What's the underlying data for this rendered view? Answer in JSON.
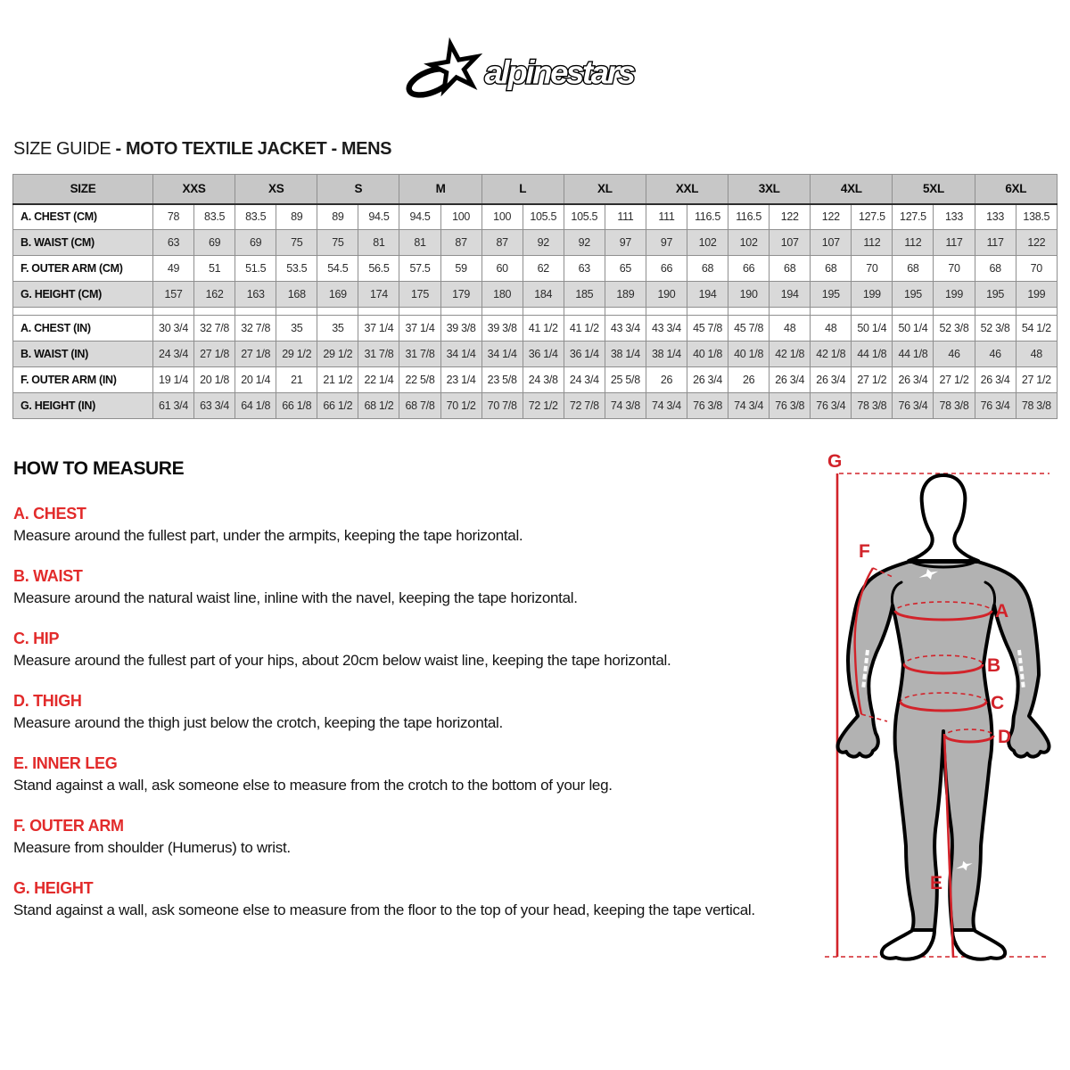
{
  "brand": {
    "logo_text": "alpinestars"
  },
  "title": {
    "regular": "SIZE GUIDE",
    "bold": "- MOTO TEXTILE JACKET - MENS"
  },
  "size_table": {
    "corner_label": "SIZE",
    "sizes": [
      "XXS",
      "XS",
      "S",
      "M",
      "L",
      "XL",
      "XXL",
      "3XL",
      "4XL",
      "5XL",
      "6XL"
    ],
    "groups": [
      {
        "unit": "CM",
        "rows": [
          {
            "label": "A. CHEST (CM)",
            "values": [
              "78",
              "83.5",
              "83.5",
              "89",
              "89",
              "94.5",
              "94.5",
              "100",
              "100",
              "105.5",
              "105.5",
              "111",
              "111",
              "116.5",
              "116.5",
              "122",
              "122",
              "127.5",
              "127.5",
              "133",
              "133",
              "138.5"
            ]
          },
          {
            "label": "B. WAIST (CM)",
            "values": [
              "63",
              "69",
              "69",
              "75",
              "75",
              "81",
              "81",
              "87",
              "87",
              "92",
              "92",
              "97",
              "97",
              "102",
              "102",
              "107",
              "107",
              "112",
              "112",
              "117",
              "117",
              "122"
            ]
          },
          {
            "label": "F. OUTER ARM (CM)",
            "values": [
              "49",
              "51",
              "51.5",
              "53.5",
              "54.5",
              "56.5",
              "57.5",
              "59",
              "60",
              "62",
              "63",
              "65",
              "66",
              "68",
              "66",
              "68",
              "68",
              "70",
              "68",
              "70",
              "68",
              "70"
            ]
          },
          {
            "label": "G. HEIGHT (CM)",
            "values": [
              "157",
              "162",
              "163",
              "168",
              "169",
              "174",
              "175",
              "179",
              "180",
              "184",
              "185",
              "189",
              "190",
              "194",
              "190",
              "194",
              "195",
              "199",
              "195",
              "199",
              "195",
              "199"
            ]
          }
        ]
      },
      {
        "unit": "IN",
        "rows": [
          {
            "label": "A. CHEST (IN)",
            "values": [
              "30 3/4",
              "32 7/8",
              "32 7/8",
              "35",
              "35",
              "37 1/4",
              "37 1/4",
              "39 3/8",
              "39 3/8",
              "41 1/2",
              "41 1/2",
              "43 3/4",
              "43 3/4",
              "45 7/8",
              "45 7/8",
              "48",
              "48",
              "50 1/4",
              "50 1/4",
              "52 3/8",
              "52 3/8",
              "54 1/2"
            ]
          },
          {
            "label": "B. WAIST (IN)",
            "values": [
              "24 3/4",
              "27 1/8",
              "27 1/8",
              "29 1/2",
              "29 1/2",
              "31 7/8",
              "31 7/8",
              "34 1/4",
              "34 1/4",
              "36 1/4",
              "36 1/4",
              "38 1/4",
              "38 1/4",
              "40 1/8",
              "40 1/8",
              "42 1/8",
              "42 1/8",
              "44 1/8",
              "44 1/8",
              "46",
              "46",
              "48"
            ]
          },
          {
            "label": "F. OUTER ARM (IN)",
            "values": [
              "19 1/4",
              "20 1/8",
              "20 1/4",
              "21",
              "21 1/2",
              "22 1/4",
              "22 5/8",
              "23 1/4",
              "23 5/8",
              "24 3/8",
              "24 3/4",
              "25 5/8",
              "26",
              "26 3/4",
              "26",
              "26 3/4",
              "26 3/4",
              "27 1/2",
              "26 3/4",
              "27 1/2",
              "26 3/4",
              "27 1/2"
            ]
          },
          {
            "label": "G. HEIGHT (IN)",
            "values": [
              "61 3/4",
              "63 3/4",
              "64 1/8",
              "66 1/8",
              "66 1/2",
              "68 1/2",
              "68 7/8",
              "70 1/2",
              "70 7/8",
              "72 1/2",
              "72 7/8",
              "74 3/8",
              "74 3/4",
              "76 3/8",
              "74 3/4",
              "76 3/8",
              "76 3/4",
              "78 3/8",
              "76 3/4",
              "78 3/8",
              "76 3/4",
              "78 3/8"
            ]
          }
        ]
      }
    ]
  },
  "how_to_measure": {
    "heading": "HOW TO MEASURE",
    "sections": [
      {
        "label": "A. CHEST",
        "text": "Measure around the fullest part, under the armpits, keeping the tape horizontal."
      },
      {
        "label": "B. WAIST",
        "text": "Measure around the natural waist line, inline with the navel, keeping the tape horizontal."
      },
      {
        "label": "C. HIP",
        "text": "Measure around the fullest part of your hips, about 20cm below waist line, keeping the tape horizontal."
      },
      {
        "label": "D. THIGH",
        "text": "Measure around the thigh just below the crotch, keeping the tape horizontal."
      },
      {
        "label": "E. INNER LEG",
        "text": "Stand against a wall, ask someone else to measure from the crotch to the bottom of your leg."
      },
      {
        "label": "F. OUTER ARM",
        "text": "Measure from shoulder (Humerus) to wrist."
      },
      {
        "label": "G. HEIGHT",
        "text": "Stand against a wall, ask someone else to measure from the floor to the top of your head, keeping the tape vertical."
      }
    ]
  },
  "diagram": {
    "labels": {
      "a": "A",
      "b": "B",
      "c": "C",
      "d": "D",
      "e": "E",
      "f": "F",
      "g": "G"
    }
  },
  "colors": {
    "accent_red": "#e22b2b",
    "diagram_red": "#d2232a",
    "table_header_bg": "#c7c7c7",
    "table_row_alt_bg": "#d9d9d9",
    "figure_gray": "#b2b2b2"
  }
}
